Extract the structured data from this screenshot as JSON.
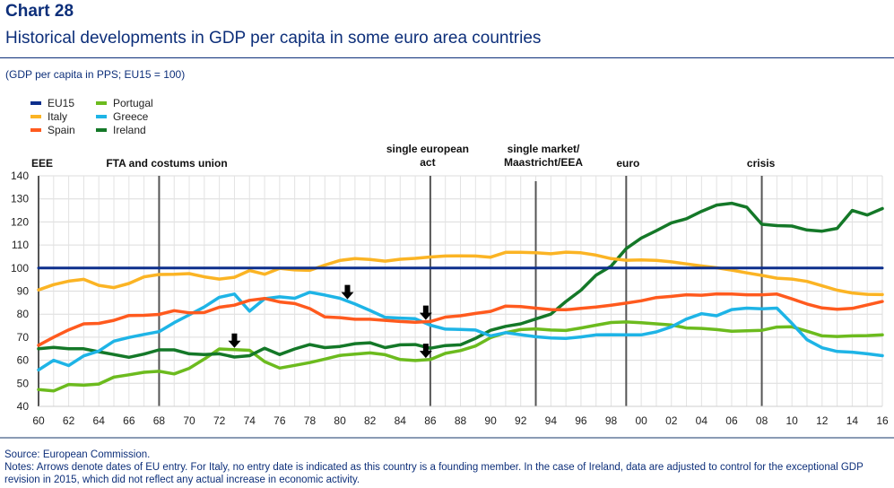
{
  "header": {
    "chart_number": "Chart 28",
    "title": "Historical developments in GDP per capita in some euro area countries",
    "subtitle": "(GDP per capita in PPS; EU15 = 100)"
  },
  "footer": {
    "source": "Source: European Commission.",
    "notes": "Notes: Arrows denote dates of EU entry. For Italy, no entry date is indicated as this country is a founding member. In the case of Ireland, data are adjusted to control for the exceptional GDP revision in 2015, which did not reflect any actual increase in economic activity."
  },
  "chart_data": {
    "type": "line",
    "title": "Historical developments in GDP per capita in some euro area countries",
    "xlabel": "",
    "ylabel": "GDP per capita in PPS; EU15 = 100",
    "xlim": [
      1960,
      2016
    ],
    "ylim": [
      40,
      140
    ],
    "grid": true,
    "legend_position": "top-left",
    "x": [
      1960,
      1961,
      1962,
      1963,
      1964,
      1965,
      1966,
      1967,
      1968,
      1969,
      1970,
      1971,
      1972,
      1973,
      1974,
      1975,
      1976,
      1977,
      1978,
      1979,
      1980,
      1981,
      1982,
      1983,
      1984,
      1985,
      1986,
      1987,
      1988,
      1989,
      1990,
      1991,
      1992,
      1993,
      1994,
      1995,
      1996,
      1997,
      1998,
      1999,
      2000,
      2001,
      2002,
      2003,
      2004,
      2005,
      2006,
      2007,
      2008,
      2009,
      2010,
      2011,
      2012,
      2013,
      2014,
      2015,
      2016
    ],
    "x_tick_labels": [
      "60",
      "62",
      "64",
      "66",
      "68",
      "70",
      "72",
      "74",
      "76",
      "78",
      "80",
      "82",
      "84",
      "86",
      "88",
      "90",
      "92",
      "94",
      "96",
      "98",
      "00",
      "02",
      "04",
      "06",
      "08",
      "10",
      "12",
      "14",
      "16"
    ],
    "y_ticks": [
      40,
      50,
      60,
      70,
      80,
      90,
      100,
      110,
      120,
      130,
      140
    ],
    "series": [
      {
        "name": "EU15",
        "color": "#0d2f8c",
        "values": [
          100,
          100,
          100,
          100,
          100,
          100,
          100,
          100,
          100,
          100,
          100,
          100,
          100,
          100,
          100,
          100,
          100,
          100,
          100,
          100,
          100,
          100,
          100,
          100,
          100,
          100,
          100,
          100,
          100,
          100,
          100,
          100,
          100,
          100,
          100,
          100,
          100,
          100,
          100,
          100,
          100,
          100,
          100,
          100,
          100,
          100,
          100,
          100,
          100,
          100,
          100,
          100,
          100,
          100,
          100,
          100,
          100
        ]
      },
      {
        "name": "Italy",
        "color": "#fbb424",
        "values": [
          90.5,
          92.8,
          94.3,
          95.1,
          92.5,
          91.5,
          93.3,
          96.2,
          97.2,
          97.3,
          97.6,
          96.2,
          95.2,
          96.0,
          98.9,
          97.3,
          99.9,
          99.2,
          99.0,
          101.3,
          103.3,
          104.1,
          103.7,
          103.0,
          103.8,
          104.2,
          104.8,
          105.2,
          105.3,
          105.2,
          104.7,
          106.8,
          106.8,
          106.6,
          106.2,
          106.9,
          106.6,
          105.6,
          104.1,
          103.4,
          103.5,
          103.3,
          102.7,
          101.8,
          100.9,
          100.1,
          99.1,
          97.9,
          96.8,
          95.6,
          95.2,
          94.2,
          92.3,
          90.4,
          89.2,
          88.6,
          88.5
        ]
      },
      {
        "name": "Spain",
        "color": "#ff5a1e",
        "values": [
          66.5,
          70.0,
          73.2,
          75.8,
          76.0,
          77.3,
          79.4,
          79.5,
          79.9,
          81.5,
          80.6,
          80.7,
          83.0,
          83.9,
          86.0,
          86.8,
          85.3,
          84.6,
          82.4,
          78.8,
          78.5,
          77.8,
          77.8,
          77.3,
          76.8,
          76.5,
          76.8,
          78.7,
          79.3,
          80.3,
          81.2,
          83.5,
          83.3,
          82.6,
          82.0,
          81.9,
          82.5,
          83.1,
          83.9,
          84.8,
          85.8,
          87.2,
          87.7,
          88.4,
          88.2,
          88.8,
          88.7,
          88.4,
          88.4,
          88.7,
          86.6,
          84.4,
          82.7,
          82.1,
          82.5,
          84.0,
          85.5
        ]
      },
      {
        "name": "Portugal",
        "color": "#6cbb1e",
        "values": [
          47.3,
          46.7,
          49.5,
          49.2,
          49.7,
          52.7,
          53.7,
          54.8,
          55.2,
          54.1,
          56.5,
          60.5,
          64.9,
          64.6,
          64.3,
          59.4,
          56.6,
          57.8,
          59.0,
          60.5,
          62.1,
          62.7,
          63.2,
          62.4,
          60.3,
          59.9,
          60.3,
          63.0,
          64.2,
          66.2,
          69.8,
          72.0,
          73.3,
          73.6,
          73.1,
          72.9,
          74.0,
          75.2,
          76.4,
          76.6,
          76.3,
          75.8,
          75.3,
          74.0,
          73.8,
          73.3,
          72.6,
          72.8,
          73.0,
          74.4,
          74.5,
          72.6,
          70.6,
          70.3,
          70.6,
          70.7,
          71.0
        ]
      },
      {
        "name": "Greece",
        "color": "#1eb4e6",
        "values": [
          55.8,
          60.0,
          57.7,
          61.9,
          64.0,
          68.3,
          69.9,
          71.2,
          72.4,
          76.3,
          79.7,
          83.1,
          87.3,
          88.7,
          81.3,
          86.7,
          87.5,
          86.9,
          89.5,
          88.3,
          86.9,
          84.4,
          81.6,
          78.6,
          78.3,
          78.0,
          75.2,
          73.5,
          73.4,
          73.1,
          70.6,
          72.0,
          71.1,
          70.2,
          69.7,
          69.5,
          70.1,
          71.0,
          71.1,
          71.0,
          71.0,
          72.3,
          74.5,
          77.9,
          80.2,
          79.3,
          82.0,
          82.6,
          82.3,
          82.6,
          76.0,
          68.9,
          65.4,
          63.8,
          63.5,
          62.8,
          62.0
        ]
      },
      {
        "name": "Ireland",
        "color": "#147828",
        "values": [
          65.0,
          65.6,
          65.0,
          65.0,
          63.7,
          62.5,
          61.3,
          62.7,
          64.5,
          64.5,
          62.8,
          62.5,
          62.8,
          61.4,
          62.0,
          65.2,
          62.5,
          64.9,
          66.8,
          65.5,
          66.0,
          67.2,
          67.6,
          65.5,
          66.7,
          66.8,
          65.2,
          66.4,
          66.7,
          69.5,
          73.0,
          74.7,
          75.8,
          77.9,
          80.0,
          85.5,
          90.4,
          96.9,
          100.8,
          108.4,
          113.0,
          116.2,
          119.6,
          121.4,
          124.6,
          127.3,
          128.1,
          126.4,
          119.0,
          118.4,
          118.2,
          116.5,
          116.0,
          117.2,
          125.0,
          123.0,
          125.8
        ]
      }
    ],
    "event_lines": [
      {
        "year": 1960,
        "label": "EEE"
      },
      {
        "year": 1968,
        "label": "FTA and costums union"
      },
      {
        "year": 1986,
        "label": "single european act"
      },
      {
        "year": 1993,
        "label": "single market/ Maastricht/EEA"
      },
      {
        "year": 1999,
        "label": "euro"
      },
      {
        "year": 2008,
        "label": "crisis"
      }
    ],
    "annotations": [
      {
        "type": "arrow-down",
        "series": "Portugal",
        "year": 1973,
        "text": "EU entry (Ireland)"
      },
      {
        "type": "arrow-down",
        "series": "Greece",
        "year": 1980.5,
        "text": "EU entry (Greece)"
      },
      {
        "type": "arrow-down",
        "series": "Spain",
        "year": 1985.7,
        "text": "EU entry (Spain)"
      },
      {
        "type": "arrow-down",
        "series": "Portugal",
        "year": 1985.7,
        "text": "EU entry (Portugal)"
      }
    ]
  },
  "legend": {
    "items": [
      {
        "label": "EU15",
        "color": "#0d2f8c"
      },
      {
        "label": "Italy",
        "color": "#fbb424"
      },
      {
        "label": "Spain",
        "color": "#ff5a1e"
      },
      {
        "label": "Portugal",
        "color": "#6cbb1e"
      },
      {
        "label": "Greece",
        "color": "#1eb4e6"
      },
      {
        "label": "Ireland",
        "color": "#147828"
      }
    ]
  }
}
